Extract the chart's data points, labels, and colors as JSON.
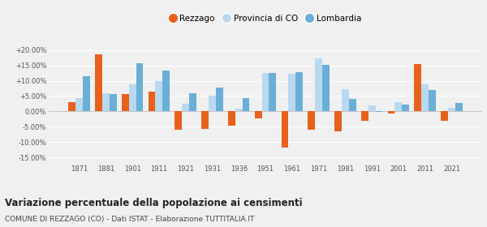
{
  "years": [
    1871,
    1881,
    1901,
    1911,
    1921,
    1931,
    1936,
    1951,
    1961,
    1971,
    1981,
    1991,
    2001,
    2011,
    2021
  ],
  "rezzago": [
    3.0,
    18.5,
    5.7,
    6.5,
    -5.9,
    -5.8,
    -4.8,
    -2.3,
    -11.8,
    -6.0,
    -6.5,
    -3.2,
    -0.8,
    15.5,
    -3.0
  ],
  "provincia": [
    4.2,
    5.8,
    8.9,
    9.8,
    2.5,
    5.1,
    1.0,
    12.4,
    12.2,
    17.3,
    7.2,
    2.0,
    3.0,
    8.9,
    1.2
  ],
  "lombardia": [
    11.5,
    5.7,
    15.8,
    13.2,
    6.0,
    7.8,
    4.3,
    12.5,
    12.8,
    15.2,
    4.0,
    -0.1,
    2.1,
    7.1,
    2.7
  ],
  "color_rezzago": "#e8611a",
  "color_provincia": "#b8d9f0",
  "color_lombardia": "#6aafd6",
  "title": "Variazione percentuale della popolazione ai censimenti",
  "subtitle": "COMUNE DI REZZAGO (CO) - Dati ISTAT - Elaborazione TUTTITALIA.IT",
  "yticks": [
    -15,
    -10,
    -5,
    0,
    5,
    10,
    15,
    20
  ],
  "ylim": [
    -17,
    23
  ],
  "bg_color": "#f0f0f0",
  "grid_color": "#ffffff"
}
